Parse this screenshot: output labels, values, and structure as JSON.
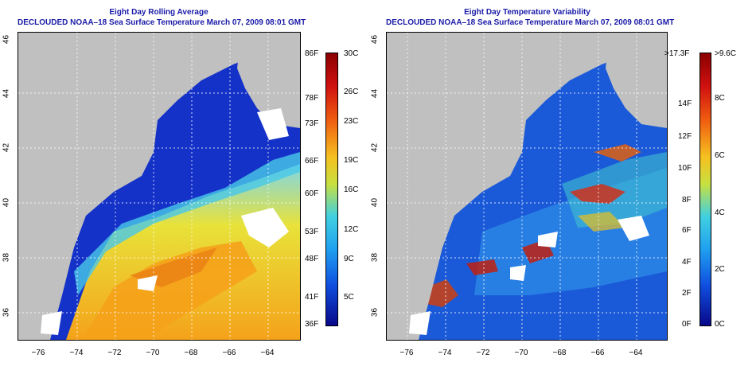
{
  "left_panel": {
    "title_line1": "Eight Day Rolling Average",
    "title_line2": "DECLOUDED NOAA–18 Sea Surface Temperature March 07, 2009 08:01 GMT",
    "y_ticks": [
      "46",
      "44",
      "42",
      "40",
      "38",
      "36"
    ],
    "x_ticks": [
      "−76",
      "−74",
      "−72",
      "−70",
      "−68",
      "−66",
      "−64"
    ],
    "colorbar_left_labels": [
      "86F",
      "78F",
      "73F",
      "66F",
      "60F",
      "53F",
      "48F",
      "41F",
      "36F"
    ],
    "colorbar_right_labels": [
      "30C",
      "26C",
      "23C",
      "19C",
      "16C",
      "12C",
      "9C",
      "5C"
    ]
  },
  "right_panel": {
    "title_line1": "Eight Day Temperature Variability",
    "title_line2": "DECLOUDED NOAA–18 Sea Surface Temperature March 07, 2009 08:01 GMT",
    "y_ticks": [
      "46",
      "44",
      "42",
      "40",
      "38",
      "36"
    ],
    "x_ticks": [
      "−76",
      "−74",
      "−72",
      "−70",
      "−68",
      "−66",
      "−64"
    ],
    "colorbar_left_labels": [
      ">17.3F",
      "14F",
      "12F",
      "10F",
      "8F",
      "6F",
      "4F",
      "2F",
      "0F"
    ],
    "colorbar_right_labels": [
      ">9.6C",
      "8C",
      "6C",
      "4C",
      "2C",
      "0C"
    ]
  },
  "colors": {
    "land": "#c0c0c0",
    "title": "#1a1aa8",
    "cold": "#0a1fb0",
    "warm": "#f5a21a"
  }
}
